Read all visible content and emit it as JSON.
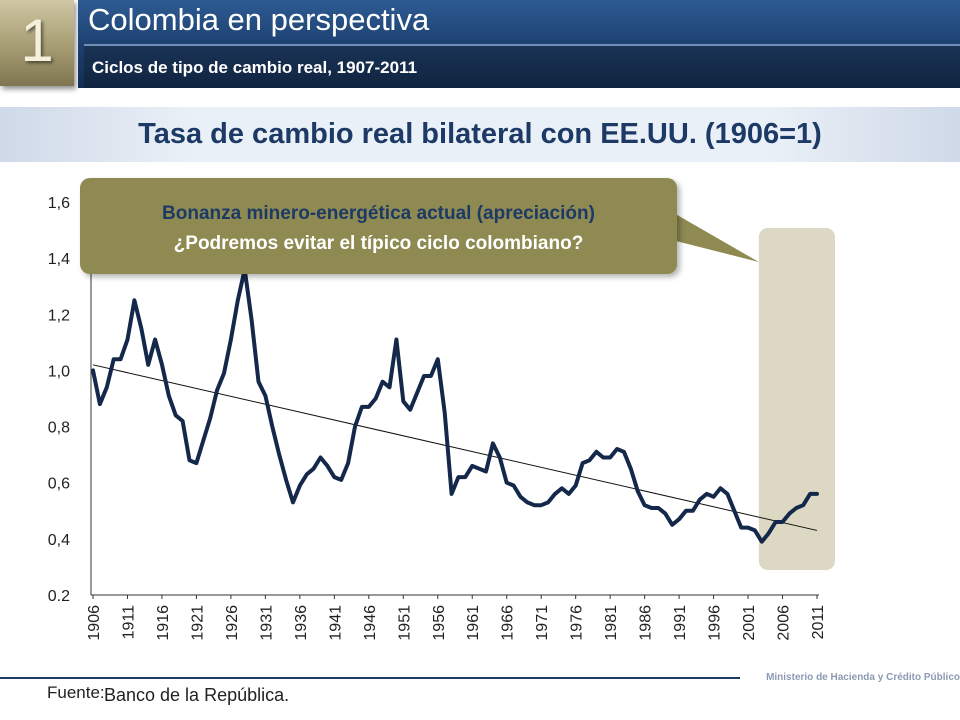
{
  "header": {
    "slide_number": "1",
    "title": "Colombia en perspectiva",
    "subtitle": "Ciclos de tipo de cambio real, 1907-2011"
  },
  "band": {
    "heading": "Tasa de cambio real bilateral con EE.UU. (1906=1)"
  },
  "callout": {
    "line1": "Bonanza minero-energética actual (apreciación)",
    "line2": "¿Podremos evitar el típico ciclo colombiano?"
  },
  "footer": {
    "source_label": "Fuente:",
    "source_value": "Banco de la República.",
    "ministry": "Ministerio de Hacienda y Crédito Público"
  },
  "colors": {
    "series": "#14284a",
    "trend": "#111111",
    "highlight": "#dcd8c4",
    "callout": "#8f8a52"
  },
  "chart_data": {
    "type": "line",
    "title": "Tasa de cambio real bilateral con EE.UU. (1906=1)",
    "xlabel": "",
    "ylabel": "",
    "ylim": [
      0.2,
      1.6
    ],
    "xlim": [
      1906,
      2011
    ],
    "y_ticks": [
      "0.2",
      "0,4",
      "0,6",
      "0,8",
      "1,0",
      "1,2",
      "1,4",
      "1,6"
    ],
    "y_tick_values": [
      0.2,
      0.4,
      0.6,
      0.8,
      1.0,
      1.2,
      1.4,
      1.6
    ],
    "x_ticks": [
      "1906",
      "1911",
      "1916",
      "1921",
      "1926",
      "1931",
      "1936",
      "1941",
      "1946",
      "1951",
      "1956",
      "1961",
      "1966",
      "1971",
      "1976",
      "1981",
      "1986",
      "1991",
      "1996",
      "2001",
      "2006",
      "2011"
    ],
    "x_tick_values": [
      1906,
      1911,
      1916,
      1921,
      1926,
      1931,
      1936,
      1941,
      1946,
      1951,
      1956,
      1961,
      1966,
      1971,
      1976,
      1981,
      1986,
      1991,
      1996,
      2001,
      2006,
      2011
    ],
    "grid": false,
    "series": [
      {
        "x": [
          1906,
          1907,
          1908,
          1909,
          1910,
          1911,
          1912,
          1913,
          1914,
          1915,
          1916,
          1917,
          1918,
          1919,
          1920,
          1921,
          1922,
          1923,
          1924,
          1925,
          1926,
          1927,
          1928,
          1929,
          1930,
          1931,
          1932,
          1933,
          1934,
          1935,
          1936,
          1937,
          1938,
          1939,
          1940,
          1941,
          1942,
          1943,
          1944,
          1945,
          1946,
          1947,
          1948,
          1949,
          1950,
          1951,
          1952,
          1953,
          1954,
          1955,
          1956,
          1957,
          1958,
          1959,
          1960,
          1961,
          1962,
          1963,
          1964,
          1965,
          1966,
          1967,
          1968,
          1969,
          1970,
          1971,
          1972,
          1973,
          1974,
          1975,
          1976,
          1977,
          1978,
          1979,
          1980,
          1981,
          1982,
          1983,
          1984,
          1985,
          1986,
          1987,
          1988,
          1989,
          1990,
          1991,
          1992,
          1993,
          1994,
          1995,
          1996,
          1997,
          1998,
          1999,
          2000,
          2001,
          2002,
          2003,
          2004,
          2005,
          2006,
          2007,
          2008,
          2009,
          2010,
          2011
        ],
        "values": [
          1.0,
          0.88,
          0.94,
          1.04,
          1.04,
          1.11,
          1.25,
          1.15,
          1.02,
          1.11,
          1.02,
          0.91,
          0.84,
          0.82,
          0.68,
          0.67,
          0.75,
          0.83,
          0.93,
          0.99,
          1.11,
          1.25,
          1.36,
          1.18,
          0.96,
          0.91,
          0.8,
          0.7,
          0.61,
          0.53,
          0.59,
          0.63,
          0.65,
          0.69,
          0.66,
          0.62,
          0.61,
          0.67,
          0.8,
          0.87,
          0.87,
          0.9,
          0.96,
          0.94,
          1.11,
          0.89,
          0.86,
          0.92,
          0.98,
          0.98,
          1.04,
          0.85,
          0.56,
          0.62,
          0.62,
          0.66,
          0.65,
          0.64,
          0.74,
          0.69,
          0.6,
          0.59,
          0.55,
          0.53,
          0.52,
          0.52,
          0.53,
          0.56,
          0.58,
          0.56,
          0.59,
          0.67,
          0.68,
          0.71,
          0.69,
          0.69,
          0.72,
          0.71,
          0.65,
          0.57,
          0.52,
          0.51,
          0.51,
          0.49,
          0.45,
          0.47,
          0.5,
          0.5,
          0.54,
          0.56,
          0.55,
          0.58,
          0.56,
          0.5,
          0.44,
          0.44,
          0.43,
          0.39,
          0.42,
          0.46,
          0.46,
          0.49,
          0.51,
          0.52,
          0.56,
          0.56
        ]
      }
    ],
    "trend": {
      "x": [
        1906,
        2011
      ],
      "values": [
        1.02,
        0.43
      ]
    },
    "highlight": {
      "x_range": [
        2003,
        2011
      ],
      "label": "Bonanza minero-energética actual (apreciación)"
    }
  }
}
